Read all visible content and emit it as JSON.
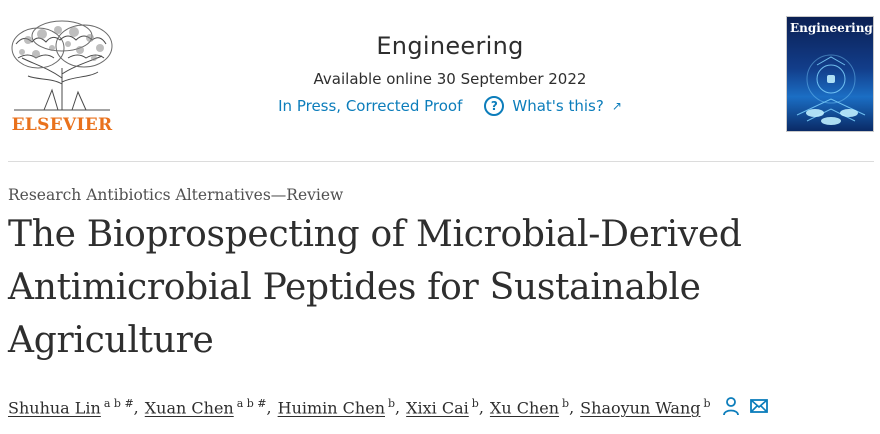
{
  "header": {
    "publisher": "ELSEVIER",
    "journal": "Engineering",
    "available": "Available online 30 September 2022",
    "status": "In Press, Corrected Proof",
    "whats_this": "What's this?",
    "cover_title": "Engineering"
  },
  "article": {
    "type": "Research Antibiotics Alternatives—Review",
    "title": "The Bioprospecting of Microbial-Derived Antimicrobial Peptides for Sustainable Agriculture",
    "authors": [
      {
        "name": "Shuhua Lin",
        "sup": "a b #"
      },
      {
        "name": "Xuan Chen",
        "sup": "a b #"
      },
      {
        "name": "Huimin Chen",
        "sup": "b"
      },
      {
        "name": "Xixi Cai",
        "sup": "b"
      },
      {
        "name": "Xu Chen",
        "sup": "b"
      },
      {
        "name": "Shaoyun Wang",
        "sup": "b"
      }
    ]
  },
  "colors": {
    "link": "#0c7dbb",
    "elsevier_orange": "#e9711c",
    "text": "#2e2e2e"
  },
  "icons": [
    "elsevier-tree-logo",
    "question-icon",
    "external-arrow-icon",
    "person-icon",
    "envelope-icon"
  ]
}
